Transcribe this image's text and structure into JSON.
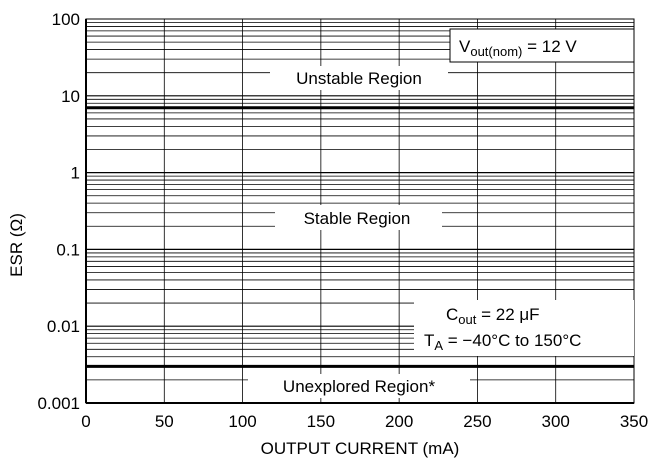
{
  "chart_data": {
    "type": "line",
    "xlabel": "OUTPUT CURRENT (mA)",
    "ylabel": "ESR (Ω)",
    "x_ticks": [
      "0",
      "50",
      "100",
      "150",
      "200",
      "250",
      "300",
      "350"
    ],
    "y_ticks": [
      "0.001",
      "0.01",
      "0.1",
      "1",
      "10",
      "100"
    ],
    "xlim": [
      0,
      350
    ],
    "ylim": [
      0.001,
      100
    ],
    "y_scale": "log",
    "grid": true,
    "series": [
      {
        "name": "",
        "x": [
          0,
          350
        ],
        "y": [
          7,
          7
        ],
        "color": "#000000"
      },
      {
        "name": "",
        "x": [
          0,
          350
        ],
        "y": [
          0.003,
          0.003
        ],
        "color": "#000000"
      }
    ],
    "annotations": {
      "unstable": "Unstable Region",
      "stable": "Stable Region",
      "unexplored": "Unexplored Region*",
      "vout_main": "V",
      "vout_sub": "out(nom)",
      "vout_rest": " = 12 V",
      "cout_main": "C",
      "cout_sub": "out",
      "cout_rest": " = 22 μF",
      "ta_main": "T",
      "ta_sub": "A",
      "ta_rest": " = −40°C to 150°C"
    }
  }
}
